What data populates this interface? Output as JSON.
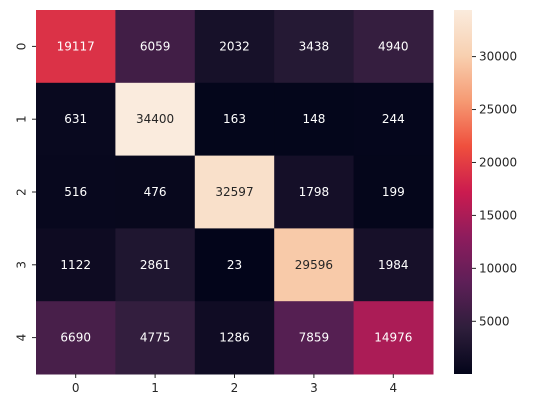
{
  "chart_data": {
    "type": "heatmap",
    "title": "",
    "xlabel": "",
    "ylabel": "",
    "x_categories": [
      "0",
      "1",
      "2",
      "3",
      "4"
    ],
    "y_categories": [
      "0",
      "1",
      "2",
      "3",
      "4"
    ],
    "values": [
      [
        19117,
        6059,
        2032,
        3438,
        4940
      ],
      [
        631,
        34400,
        163,
        148,
        244
      ],
      [
        516,
        476,
        32597,
        1798,
        199
      ],
      [
        1122,
        2861,
        23,
        29596,
        1984
      ],
      [
        6690,
        4775,
        1286,
        7859,
        14976
      ]
    ],
    "colormap": "rocket",
    "vmin": 23,
    "vmax": 34400,
    "colorbar_ticks": [
      5000,
      10000,
      15000,
      20000,
      25000,
      30000
    ],
    "colorbar_tick_labels": [
      "5000",
      "10000",
      "15000",
      "20000",
      "25000",
      "30000"
    ],
    "colorbar_position": "right",
    "grid": false,
    "colormap_stops": [
      "#03051a",
      "#2e1e3b",
      "#5d1f57",
      "#8d1c5d",
      "#cb1b4f",
      "#ef4f3d",
      "#f69a73",
      "#f8d0b0",
      "#faebdd"
    ]
  }
}
